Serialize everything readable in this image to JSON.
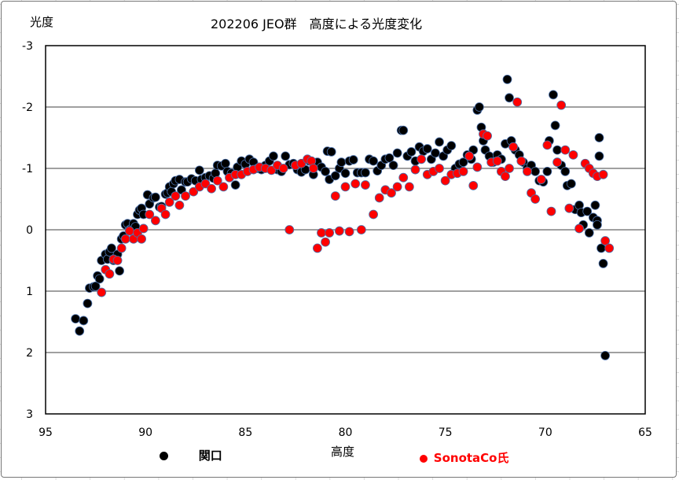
{
  "chart_data": {
    "type": "scatter",
    "title": "202206 JEO群　高度による光度変化",
    "xlabel": "高度",
    "ylabel": "光度",
    "xlim": [
      95,
      65
    ],
    "ylim": [
      -3,
      3
    ],
    "y_reversed": true,
    "x_reversed": true,
    "x_ticks": [
      "95",
      "90",
      "85",
      "80",
      "75",
      "70",
      "65"
    ],
    "y_ticks": [
      "-3",
      "-2",
      "-1",
      "0",
      "1",
      "2",
      "3"
    ],
    "grid": "horizontal",
    "legend_position": "bottom",
    "series": [
      {
        "name": "関口",
        "color": "#000000",
        "points": [
          [
            93.5,
            1.45
          ],
          [
            93.3,
            1.65
          ],
          [
            93.1,
            1.48
          ],
          [
            92.9,
            1.2
          ],
          [
            92.8,
            0.95
          ],
          [
            92.6,
            0.93
          ],
          [
            92.5,
            0.92
          ],
          [
            92.4,
            0.75
          ],
          [
            92.3,
            0.8
          ],
          [
            92.2,
            0.5
          ],
          [
            92.0,
            0.4
          ],
          [
            91.9,
            0.48
          ],
          [
            91.8,
            0.36
          ],
          [
            91.7,
            0.3
          ],
          [
            91.6,
            0.5
          ],
          [
            91.4,
            0.4
          ],
          [
            91.3,
            0.67
          ],
          [
            91.2,
            0.15
          ],
          [
            91.1,
            0.1
          ],
          [
            91.0,
            -0.08
          ],
          [
            90.9,
            -0.1
          ],
          [
            90.8,
            0.0
          ],
          [
            90.7,
            -0.02
          ],
          [
            90.6,
            -0.1
          ],
          [
            90.5,
            -0.05
          ],
          [
            90.4,
            -0.25
          ],
          [
            90.3,
            -0.32
          ],
          [
            90.2,
            -0.35
          ],
          [
            90.1,
            -0.25
          ],
          [
            89.9,
            -0.57
          ],
          [
            89.8,
            -0.42
          ],
          [
            89.6,
            -0.52
          ],
          [
            89.5,
            -0.53
          ],
          [
            89.3,
            -0.37
          ],
          [
            89.2,
            -0.38
          ],
          [
            89.0,
            -0.58
          ],
          [
            88.9,
            -0.6
          ],
          [
            88.8,
            -0.7
          ],
          [
            88.7,
            -0.62
          ],
          [
            88.6,
            -0.75
          ],
          [
            88.5,
            -0.8
          ],
          [
            88.3,
            -0.82
          ],
          [
            88.2,
            -0.65
          ],
          [
            88.0,
            -0.78
          ],
          [
            87.9,
            -0.78
          ],
          [
            87.7,
            -0.83
          ],
          [
            87.5,
            -0.8
          ],
          [
            87.3,
            -0.97
          ],
          [
            87.2,
            -0.82
          ],
          [
            87.0,
            -0.85
          ],
          [
            86.8,
            -0.88
          ],
          [
            86.6,
            -0.84
          ],
          [
            86.5,
            -0.92
          ],
          [
            86.4,
            -1.05
          ],
          [
            86.2,
            -1.04
          ],
          [
            86.0,
            -1.08
          ],
          [
            85.9,
            -0.95
          ],
          [
            85.7,
            -0.92
          ],
          [
            85.5,
            -0.73
          ],
          [
            85.4,
            -1.02
          ],
          [
            85.2,
            -1.12
          ],
          [
            85.0,
            -1.07
          ],
          [
            84.8,
            -1.15
          ],
          [
            84.6,
            -1.1
          ],
          [
            84.4,
            -1.0
          ],
          [
            84.2,
            -0.98
          ],
          [
            84.0,
            -1.05
          ],
          [
            83.8,
            -1.12
          ],
          [
            83.6,
            -1.2
          ],
          [
            83.4,
            -0.98
          ],
          [
            83.2,
            -0.95
          ],
          [
            83.0,
            -1.2
          ],
          [
            82.8,
            -1.06
          ],
          [
            82.6,
            -1.08
          ],
          [
            82.4,
            -0.98
          ],
          [
            82.2,
            -0.94
          ],
          [
            82.0,
            -0.98
          ],
          [
            81.8,
            -1.12
          ],
          [
            81.6,
            -0.9
          ],
          [
            81.4,
            -1.1
          ],
          [
            81.2,
            -1.02
          ],
          [
            81.0,
            -0.95
          ],
          [
            80.9,
            -1.28
          ],
          [
            80.7,
            -1.27
          ],
          [
            80.8,
            -0.82
          ],
          [
            80.5,
            -0.88
          ],
          [
            80.3,
            -1.0
          ],
          [
            80.2,
            -1.1
          ],
          [
            80.0,
            -0.92
          ],
          [
            79.8,
            -1.12
          ],
          [
            79.6,
            -1.14
          ],
          [
            79.4,
            -0.93
          ],
          [
            79.2,
            -0.93
          ],
          [
            79.0,
            -0.93
          ],
          [
            78.8,
            -1.15
          ],
          [
            78.6,
            -1.12
          ],
          [
            78.4,
            -0.96
          ],
          [
            78.2,
            -1.05
          ],
          [
            78.0,
            -1.15
          ],
          [
            77.8,
            -1.17
          ],
          [
            77.6,
            -1.05
          ],
          [
            77.4,
            -1.25
          ],
          [
            77.2,
            -1.62
          ],
          [
            77.1,
            -1.62
          ],
          [
            76.9,
            -1.2
          ],
          [
            76.7,
            -1.27
          ],
          [
            76.5,
            -1.12
          ],
          [
            76.3,
            -1.35
          ],
          [
            76.1,
            -1.28
          ],
          [
            75.9,
            -1.32
          ],
          [
            75.7,
            -1.15
          ],
          [
            75.5,
            -1.25
          ],
          [
            75.3,
            -1.43
          ],
          [
            75.1,
            -1.2
          ],
          [
            74.9,
            -1.3
          ],
          [
            74.7,
            -1.37
          ],
          [
            74.5,
            -1.0
          ],
          [
            74.3,
            -1.07
          ],
          [
            74.1,
            -1.1
          ],
          [
            73.9,
            -1.22
          ],
          [
            73.7,
            -1.15
          ],
          [
            73.6,
            -1.3
          ],
          [
            73.4,
            -1.95
          ],
          [
            73.3,
            -2.0
          ],
          [
            73.2,
            -1.67
          ],
          [
            73.1,
            -1.45
          ],
          [
            73.0,
            -1.3
          ],
          [
            72.8,
            -1.2
          ],
          [
            72.6,
            -1.1
          ],
          [
            72.4,
            -1.22
          ],
          [
            72.2,
            -1.15
          ],
          [
            72.0,
            -1.4
          ],
          [
            71.9,
            -2.45
          ],
          [
            71.8,
            -2.15
          ],
          [
            71.7,
            -1.45
          ],
          [
            71.5,
            -1.3
          ],
          [
            71.3,
            -1.22
          ],
          [
            71.1,
            -1.1
          ],
          [
            70.9,
            -1.0
          ],
          [
            70.7,
            -1.05
          ],
          [
            70.5,
            -0.95
          ],
          [
            70.3,
            -0.8
          ],
          [
            70.1,
            -0.78
          ],
          [
            69.9,
            -0.95
          ],
          [
            69.8,
            -1.45
          ],
          [
            69.6,
            -2.2
          ],
          [
            69.5,
            -1.7
          ],
          [
            69.4,
            -1.3
          ],
          [
            69.2,
            -1.05
          ],
          [
            69.0,
            -0.95
          ],
          [
            68.9,
            -0.72
          ],
          [
            68.7,
            -0.75
          ],
          [
            68.5,
            -0.33
          ],
          [
            68.3,
            -0.4
          ],
          [
            68.2,
            -0.28
          ],
          [
            68.1,
            -0.08
          ],
          [
            67.9,
            -0.3
          ],
          [
            67.8,
            0.05
          ],
          [
            67.6,
            -0.2
          ],
          [
            67.5,
            -0.4
          ],
          [
            67.4,
            -0.15
          ],
          [
            67.3,
            -1.2
          ],
          [
            67.3,
            -1.5
          ],
          [
            67.4,
            -0.08
          ],
          [
            67.2,
            0.3
          ],
          [
            67.1,
            0.55
          ],
          [
            67.0,
            2.05
          ]
        ]
      },
      {
        "name": "SonotaCo氏",
        "color": "#ff0000",
        "points": [
          [
            92.2,
            1.02
          ],
          [
            92.0,
            0.65
          ],
          [
            91.8,
            0.72
          ],
          [
            91.6,
            0.48
          ],
          [
            91.4,
            0.5
          ],
          [
            91.2,
            0.3
          ],
          [
            91.0,
            0.15
          ],
          [
            90.8,
            0.02
          ],
          [
            90.6,
            0.15
          ],
          [
            90.4,
            0.05
          ],
          [
            90.2,
            0.15
          ],
          [
            90.1,
            -0.02
          ],
          [
            89.8,
            -0.25
          ],
          [
            89.5,
            -0.15
          ],
          [
            89.2,
            -0.35
          ],
          [
            89.0,
            -0.25
          ],
          [
            88.8,
            -0.45
          ],
          [
            88.5,
            -0.55
          ],
          [
            88.3,
            -0.4
          ],
          [
            88.0,
            -0.55
          ],
          [
            87.6,
            -0.62
          ],
          [
            87.3,
            -0.7
          ],
          [
            87.0,
            -0.75
          ],
          [
            86.7,
            -0.67
          ],
          [
            86.4,
            -0.8
          ],
          [
            86.1,
            -0.7
          ],
          [
            85.8,
            -0.85
          ],
          [
            85.5,
            -0.9
          ],
          [
            85.2,
            -0.9
          ],
          [
            84.9,
            -0.95
          ],
          [
            84.6,
            -0.98
          ],
          [
            84.3,
            -1.02
          ],
          [
            84.0,
            -1.0
          ],
          [
            83.7,
            -0.97
          ],
          [
            83.4,
            -1.05
          ],
          [
            83.1,
            -1.0
          ],
          [
            82.8,
            0.0
          ],
          [
            82.5,
            -1.05
          ],
          [
            82.2,
            -1.08
          ],
          [
            81.9,
            -1.15
          ],
          [
            81.7,
            -1.12
          ],
          [
            81.6,
            -1.0
          ],
          [
            81.4,
            0.3
          ],
          [
            81.2,
            0.05
          ],
          [
            81.0,
            0.2
          ],
          [
            80.8,
            0.05
          ],
          [
            80.5,
            -0.55
          ],
          [
            80.3,
            0.02
          ],
          [
            80.0,
            -0.7
          ],
          [
            79.8,
            0.03
          ],
          [
            79.5,
            -0.75
          ],
          [
            79.2,
            0.0
          ],
          [
            79.0,
            -0.73
          ],
          [
            78.6,
            -0.25
          ],
          [
            78.3,
            -0.52
          ],
          [
            78.0,
            -0.65
          ],
          [
            77.7,
            -0.6
          ],
          [
            77.4,
            -0.7
          ],
          [
            77.1,
            -0.85
          ],
          [
            76.8,
            -0.7
          ],
          [
            76.5,
            -0.98
          ],
          [
            76.2,
            -1.15
          ],
          [
            75.9,
            -0.9
          ],
          [
            75.6,
            -0.95
          ],
          [
            75.3,
            -1.0
          ],
          [
            75.0,
            -0.8
          ],
          [
            74.7,
            -0.9
          ],
          [
            74.4,
            -0.92
          ],
          [
            74.1,
            -0.95
          ],
          [
            73.8,
            -1.2
          ],
          [
            73.6,
            -0.72
          ],
          [
            73.4,
            -1.02
          ],
          [
            73.1,
            -1.56
          ],
          [
            72.9,
            -1.53
          ],
          [
            72.7,
            -1.1
          ],
          [
            72.4,
            -1.12
          ],
          [
            72.2,
            -0.95
          ],
          [
            72.0,
            -0.87
          ],
          [
            71.8,
            -1.0
          ],
          [
            71.6,
            -1.35
          ],
          [
            71.4,
            -2.08
          ],
          [
            71.2,
            -1.12
          ],
          [
            70.9,
            -0.95
          ],
          [
            70.7,
            -0.6
          ],
          [
            70.5,
            -0.5
          ],
          [
            70.2,
            -0.82
          ],
          [
            69.9,
            -1.38
          ],
          [
            69.7,
            -0.3
          ],
          [
            69.4,
            -1.1
          ],
          [
            69.2,
            -2.03
          ],
          [
            69.0,
            -1.3
          ],
          [
            68.8,
            -0.35
          ],
          [
            68.6,
            -1.22
          ],
          [
            68.3,
            -0.02
          ],
          [
            68.0,
            -1.08
          ],
          [
            67.8,
            -1.0
          ],
          [
            67.6,
            -0.92
          ],
          [
            67.4,
            -0.87
          ],
          [
            67.1,
            -0.9
          ],
          [
            67.0,
            0.18
          ],
          [
            66.8,
            0.3
          ]
        ]
      }
    ]
  }
}
